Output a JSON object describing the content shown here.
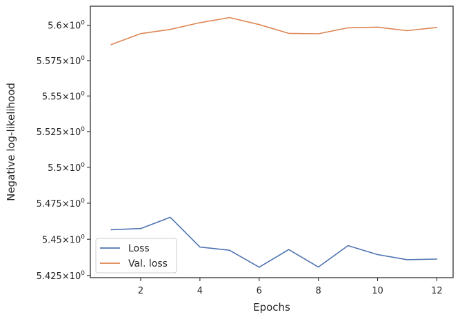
{
  "chart_data": {
    "type": "line",
    "title": "",
    "xlabel": "Epochs",
    "ylabel": "Negative log-likelihood",
    "xlim": [
      0.3,
      12.55
    ],
    "ylim": [
      5.4235,
      5.6136
    ],
    "yscale": "log",
    "grid": false,
    "legend_position": "lower-left",
    "x_ticks": [
      2,
      4,
      6,
      8,
      10,
      12
    ],
    "x_tick_labels": [
      "2",
      "4",
      "6",
      "8",
      "10",
      "12"
    ],
    "y_ticks": [
      5.425,
      5.45,
      5.475,
      5.5,
      5.525,
      5.55,
      5.575,
      5.6
    ],
    "y_tick_mantissas": [
      "5.425",
      "5.45",
      "5.475",
      "5.5",
      "5.525",
      "5.55",
      "5.575",
      "5.6"
    ],
    "y_tick_times": "×",
    "y_tick_base": "10",
    "y_tick_exponent": "0",
    "x": [
      1,
      2,
      3,
      4,
      5,
      6,
      7,
      8,
      9,
      10,
      11,
      12
    ],
    "series": [
      {
        "name": "Loss",
        "color": "#4c72b0",
        "values": [
          5.4566,
          5.4574,
          5.4652,
          5.4446,
          5.4424,
          5.4307,
          5.4429,
          5.4308,
          5.4456,
          5.4394,
          5.4359,
          5.4363
        ]
      },
      {
        "name": "Val. loss",
        "color": "#dd8452",
        "values": [
          5.5863,
          5.5941,
          5.5971,
          5.6019,
          5.6055,
          5.6005,
          5.5943,
          5.594,
          5.5982,
          5.5987,
          5.5962,
          5.5985
        ]
      }
    ]
  }
}
